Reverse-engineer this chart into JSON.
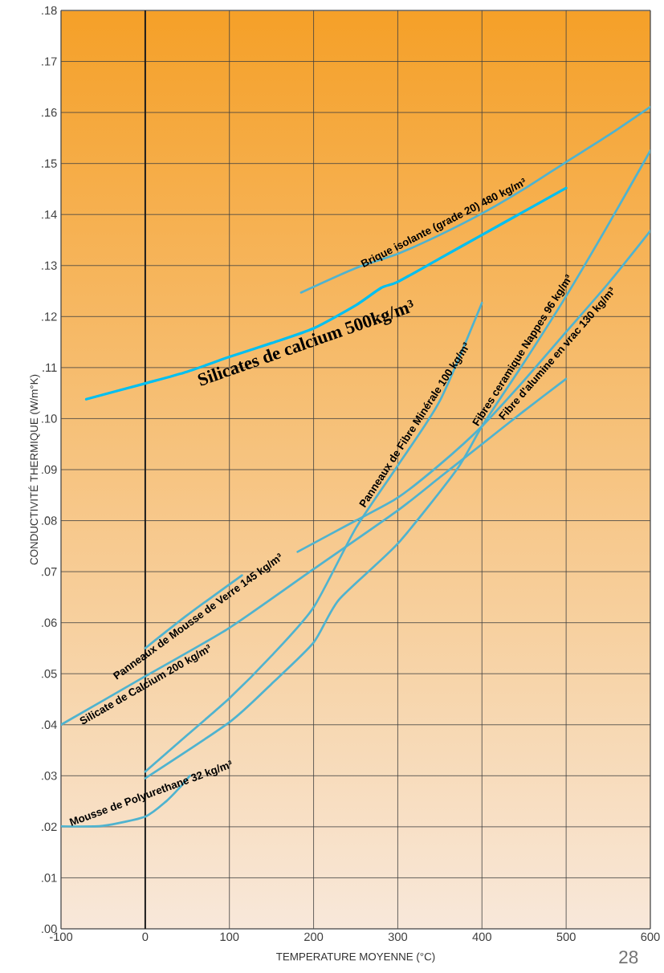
{
  "chart_data": {
    "type": "line",
    "xlabel": "TEMPERATURE MOYENNE (°C)",
    "ylabel": "CONDUCTIVITÉ THERMIQUE (W/m°K)",
    "xlim": [
      -100,
      600
    ],
    "ylim": [
      0,
      0.18
    ],
    "xticks": [
      -100,
      0,
      100,
      200,
      300,
      400,
      500,
      600
    ],
    "yticks": [
      {
        "value": 0,
        "label": ".00"
      },
      {
        "value": 0.01,
        "label": ".01"
      },
      {
        "value": 0.02,
        "label": ".02"
      },
      {
        "value": 0.03,
        "label": ".03"
      },
      {
        "value": 0.04,
        "label": ".04"
      },
      {
        "value": 0.05,
        "label": ".05"
      },
      {
        "value": 0.06,
        "label": ".06"
      },
      {
        "value": 0.07,
        "label": ".07"
      },
      {
        "value": 0.08,
        "label": ".08"
      },
      {
        "value": 0.09,
        "label": ".09"
      },
      {
        "value": 0.1,
        "label": ".10"
      },
      {
        "value": 0.11,
        "label": ".11"
      },
      {
        "value": 0.12,
        "label": ".12"
      },
      {
        "value": 0.13,
        "label": ".13"
      },
      {
        "value": 0.14,
        "label": ".14"
      },
      {
        "value": 0.15,
        "label": ".15"
      },
      {
        "value": 0.16,
        "label": ".16"
      },
      {
        "value": 0.17,
        "label": ".17"
      },
      {
        "value": 0.18,
        "label": ".18"
      }
    ],
    "grid": true,
    "marker": "none",
    "line_style": "solid",
    "ref_lines": [
      {
        "axis": "x",
        "value": 0,
        "color": "#1a1a1a"
      }
    ],
    "annotations": [
      "28"
    ],
    "series": [
      {
        "name": "Brique isolante (grade 20) 480 kg/m³",
        "color": "#4fb3cf",
        "x": [
          185,
          250,
          300,
          350,
          400,
          450,
          500,
          550,
          600
        ],
        "values": [
          0.1247,
          0.1295,
          0.1323,
          0.136,
          0.1402,
          0.145,
          0.1503,
          0.1555,
          0.1611
        ]
      },
      {
        "name": "Silicates de calcium 500kg/m³",
        "color": "#00bff0",
        "x": [
          -70,
          0,
          50,
          100,
          150,
          200,
          250,
          280,
          300,
          350,
          400,
          450,
          500
        ],
        "values": [
          0.1038,
          0.1069,
          0.1092,
          0.1121,
          0.1148,
          0.1177,
          0.1222,
          0.1256,
          0.1268,
          0.1314,
          0.136,
          0.1406,
          0.1452
        ]
      },
      {
        "name": "Panneaux de Fibre Minérale 100 kg/m³",
        "color": "#4fb3cf",
        "x": [
          0,
          50,
          100,
          150,
          200,
          250,
          300,
          350,
          400
        ],
        "values": [
          0.0308,
          0.038,
          0.0452,
          0.0535,
          0.063,
          0.0785,
          0.0908,
          0.1035,
          0.1227
        ]
      },
      {
        "name": "Fibres ceramique Nappes 96 kg/m³",
        "color": "#4fb3cf",
        "x": [
          0,
          100,
          150,
          200,
          230,
          300,
          370,
          400,
          450,
          500,
          550,
          600
        ],
        "values": [
          0.0295,
          0.0405,
          0.048,
          0.0561,
          0.0645,
          0.0755,
          0.09,
          0.0985,
          0.111,
          0.124,
          0.138,
          0.1525
        ]
      },
      {
        "name": "Fibre d'alumine en vrac 130 kg/m³",
        "color": "#4fb3cf",
        "x": [
          181,
          250,
          300,
          350,
          400,
          450,
          500,
          550,
          600
        ],
        "values": [
          0.0739,
          0.08,
          0.0845,
          0.091,
          0.0985,
          0.1075,
          0.117,
          0.1265,
          0.1368
        ]
      },
      {
        "name": "Panneaux de Mousse de Verre 145 kg/m³",
        "color": "#4fb3cf",
        "x": [
          0,
          50,
          115
        ],
        "values": [
          0.055,
          0.0615,
          0.0693
        ]
      },
      {
        "name": "Silicate de Calcium 200 kg/m³",
        "color": "#4fb3cf",
        "x": [
          -100,
          0,
          100,
          200,
          300,
          350,
          400,
          450,
          500
        ],
        "values": [
          0.04,
          0.0495,
          0.059,
          0.0705,
          0.082,
          0.0885,
          0.095,
          0.1015,
          0.1078
        ]
      },
      {
        "name": "Mousse de Polyurethane 32 kg/m³",
        "color": "#4fb3cf",
        "x": [
          -100,
          -50,
          0,
          25,
          40,
          53
        ],
        "values": [
          0.0201,
          0.0202,
          0.022,
          0.025,
          0.0275,
          0.03
        ]
      }
    ]
  }
}
